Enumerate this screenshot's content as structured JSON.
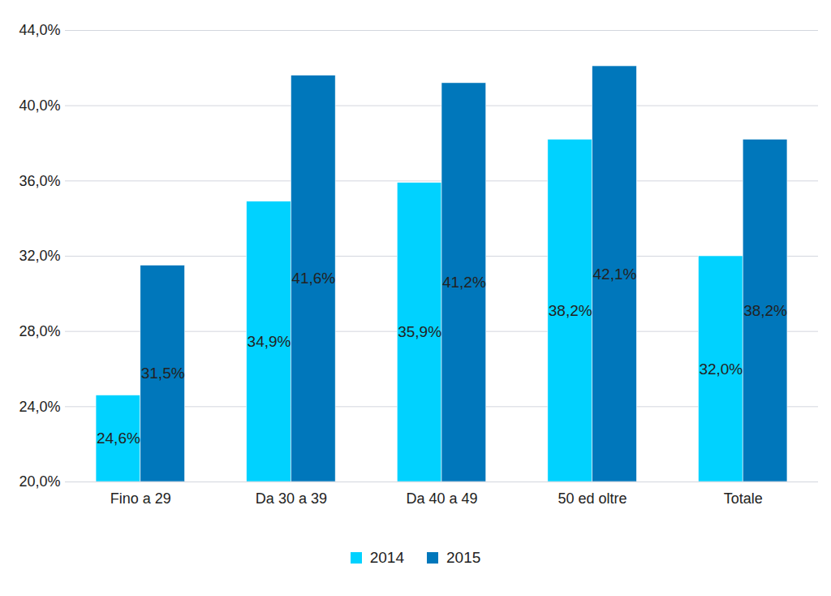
{
  "chart_data": {
    "type": "bar",
    "categories": [
      "Fino a 29",
      "Da 30 a 39",
      "Da 40 a 49",
      "50 ed oltre",
      "Totale"
    ],
    "series": [
      {
        "name": "2014",
        "color": "#00d2ff",
        "values": [
          24.6,
          34.9,
          35.9,
          38.2,
          32.0
        ],
        "value_labels": [
          "24,6%",
          "34,9%",
          "35,9%",
          "38,2%",
          "32,0%"
        ]
      },
      {
        "name": "2015",
        "color": "#0077bb",
        "values": [
          31.5,
          41.6,
          41.2,
          42.1,
          38.2
        ],
        "value_labels": [
          "31,5%",
          "41,6%",
          "41,2%",
          "42,1%",
          "38,2%"
        ]
      }
    ],
    "ylim": [
      20,
      44
    ],
    "yticks": [
      {
        "value": 20,
        "label": "20,0%"
      },
      {
        "value": 24,
        "label": "24,0%"
      },
      {
        "value": 28,
        "label": "28,0%"
      },
      {
        "value": 32,
        "label": "32,0%"
      },
      {
        "value": 36,
        "label": "36,0%"
      },
      {
        "value": 40,
        "label": "40,0%"
      },
      {
        "value": 44,
        "label": "44,0%"
      }
    ],
    "grid": true,
    "data_labels": true,
    "legend": "bottom"
  }
}
